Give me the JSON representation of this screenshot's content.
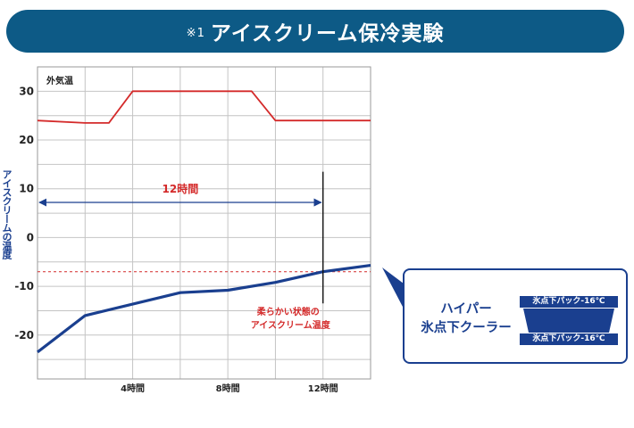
{
  "header": {
    "note": "※1",
    "title": "アイスクリーム保冷実験"
  },
  "chart_data": {
    "type": "line",
    "ylabel": "アイスクリームの温度",
    "ylim": [
      -29,
      35
    ],
    "xlim": [
      0,
      14
    ],
    "yticks": [
      30,
      20,
      10,
      0,
      -10,
      -20
    ],
    "xticks": [
      {
        "x": 4,
        "label": "4時間"
      },
      {
        "x": 8,
        "label": "8時間"
      },
      {
        "x": 12,
        "label": "12時間"
      }
    ],
    "grid": true,
    "series": [
      {
        "name": "外気温",
        "color": "#d42a2a",
        "points": [
          [
            0,
            24
          ],
          [
            2,
            23.5
          ],
          [
            3,
            23.5
          ],
          [
            4,
            30
          ],
          [
            9,
            30
          ],
          [
            10,
            24
          ],
          [
            14,
            24
          ]
        ]
      },
      {
        "name": "アイスクリームの温度",
        "color": "#1a3f8f",
        "points": [
          [
            0,
            -23.5
          ],
          [
            2,
            -16
          ],
          [
            6,
            -11.3
          ],
          [
            8,
            -10.8
          ],
          [
            10,
            -9.2
          ],
          [
            12,
            -7
          ],
          [
            14,
            -5.7
          ]
        ]
      }
    ],
    "reference_line": {
      "y": -7,
      "color": "#d42a2a"
    },
    "duration_arrow": {
      "from": 0,
      "to": 12,
      "y": 7.2,
      "label": "12時間"
    },
    "marker_line": {
      "x": 12,
      "y_from": 13.5,
      "y_to": -13.5
    },
    "annotation": {
      "line1": "柔らかい状態の",
      "line2": "アイスクリーム温度",
      "color": "#d42a2a"
    }
  },
  "callout": {
    "title_line1": "ハイパー",
    "title_line2": "氷点下クーラー",
    "pack_top": "氷点下パック-16℃",
    "pack_bottom": "氷点下パック-16℃",
    "accent": "#1a3f8f"
  }
}
